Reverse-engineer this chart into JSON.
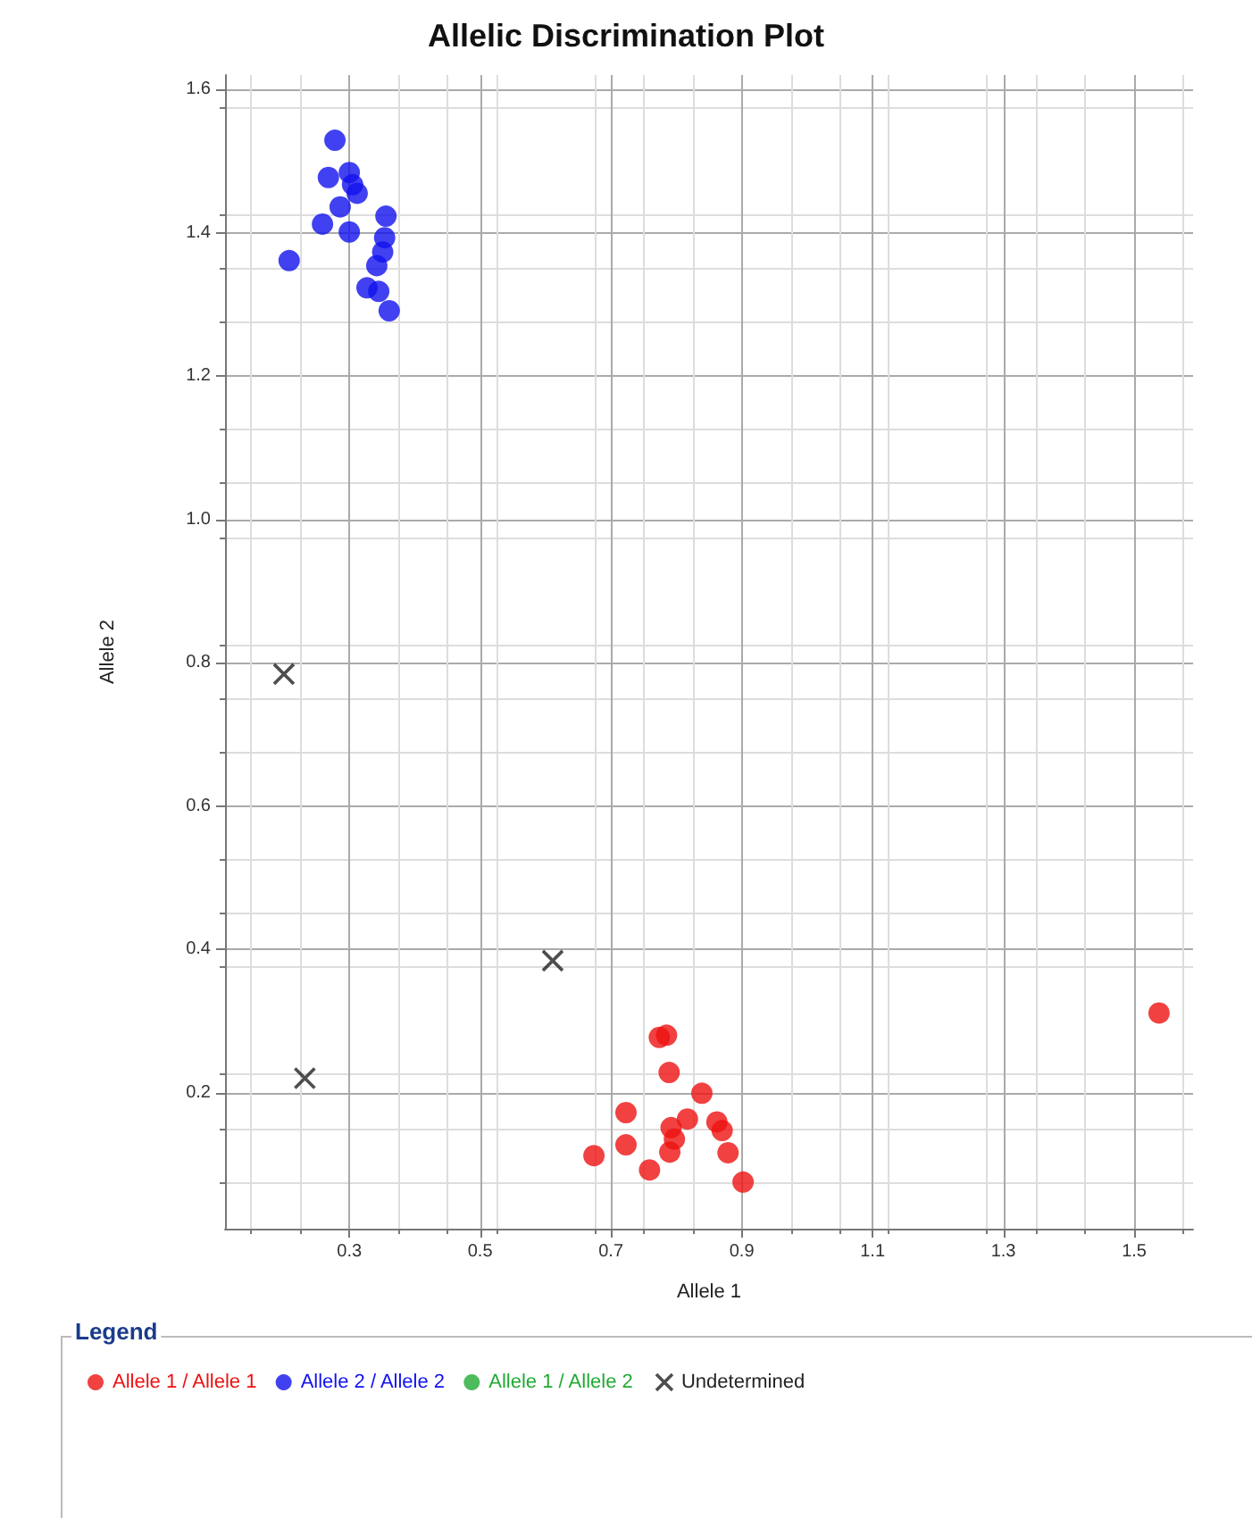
{
  "chart_data": {
    "type": "scatter",
    "title": "Allelic Discrimination Plot",
    "xlabel": "Allele 1",
    "ylabel": "Allele 2",
    "legend_title": "Legend",
    "legend": "bottom",
    "grid": true,
    "marker": "circle",
    "xlim": [
      0.11,
      1.59
    ],
    "xticks": [
      0.3,
      0.5,
      0.7,
      0.9,
      1.1,
      1.3,
      1.5
    ],
    "ylim": [
      0.01,
      1.62
    ],
    "yticks": [
      0.2,
      0.4,
      0.6,
      0.8,
      {
        "value": 1,
        "label": "1.0"
      },
      1.2,
      1.4,
      1.6
    ],
    "series": [
      {
        "name": "Allele 1 / Allele 1",
        "color": "#ee1111",
        "x": [
          0.674,
          0.723,
          0.723,
          0.759,
          0.774,
          0.785,
          0.789,
          0.792,
          0.797,
          0.79,
          0.817,
          0.839,
          0.862,
          0.87,
          0.879,
          0.902,
          1.538
        ],
        "values": [
          0.112,
          0.172,
          0.127,
          0.092,
          0.277,
          0.28,
          0.228,
          0.151,
          0.135,
          0.117,
          0.163,
          0.199,
          0.159,
          0.147,
          0.116,
          0.075,
          0.311
        ]
      },
      {
        "name": "Allele 2 / Allele 2",
        "color": "#1111ee",
        "x": [
          0.278,
          0.268,
          0.3,
          0.305,
          0.312,
          0.286,
          0.259,
          0.3,
          0.356,
          0.354,
          0.351,
          0.342,
          0.327,
          0.345,
          0.361,
          0.208
        ],
        "values": [
          1.529,
          1.477,
          1.484,
          1.467,
          1.455,
          1.436,
          1.412,
          1.401,
          1.423,
          1.393,
          1.373,
          1.354,
          1.323,
          1.318,
          1.291,
          1.361
        ]
      },
      {
        "name": "Allele 1 / Allele 2",
        "color": "#22aa33"
      },
      {
        "name": "Undetermined",
        "color": "#222222",
        "marker": "cross",
        "x": [
          0.2,
          0.232,
          0.611
        ],
        "values": [
          0.784,
          0.22,
          0.384
        ]
      }
    ]
  }
}
